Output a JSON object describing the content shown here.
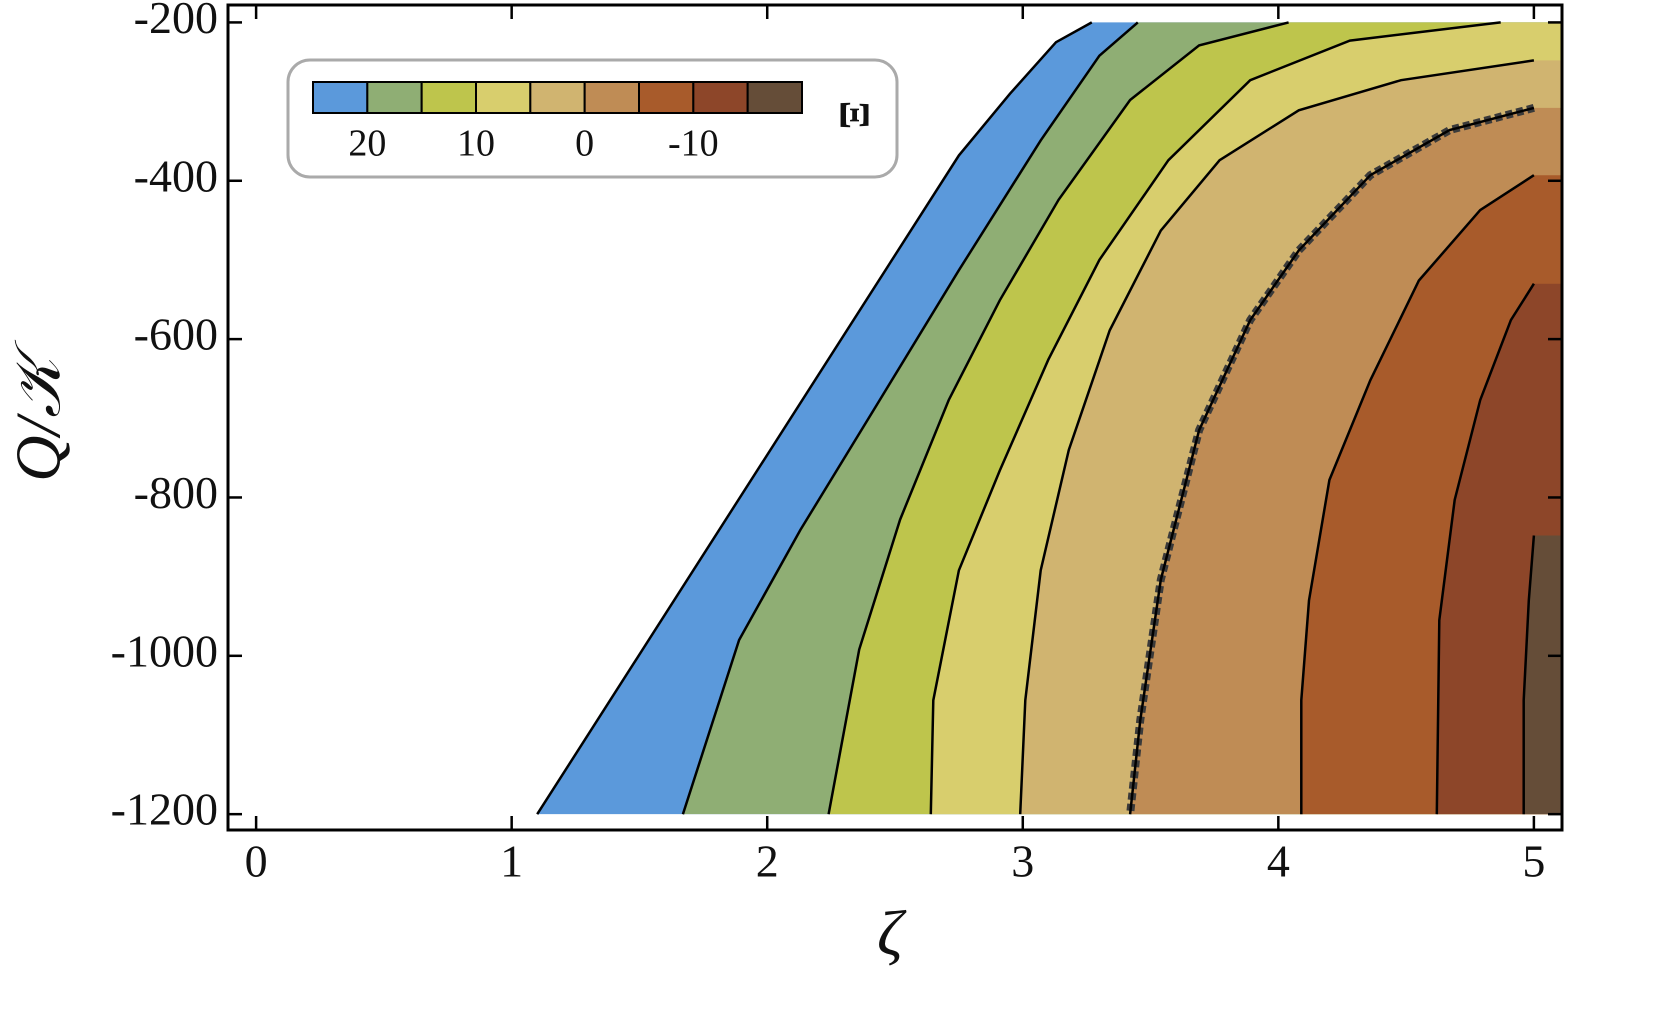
{
  "chart_data": {
    "type": "contour",
    "xlabel": "ζ",
    "ylabel": "Q/𝒦",
    "xlim": [
      -0.11,
      5.11
    ],
    "ylim": [
      -1220,
      -178
    ],
    "xticks": [
      0,
      1,
      2,
      3,
      4,
      5
    ],
    "yticks": [
      -1200,
      -1000,
      -800,
      -600,
      -400,
      -200
    ],
    "colorbar": {
      "label": "Ξ",
      "levels": [
        25,
        20,
        15,
        10,
        5,
        0,
        -5,
        -10,
        -15,
        -20
      ],
      "colors": [
        "#5b99db",
        "#8fae74",
        "#bec54c",
        "#d8ce6d",
        "#d0b470",
        "#bf8c55",
        "#a85b2b",
        "#8d4629",
        "#654d38"
      ],
      "ticks": [
        20,
        10,
        0,
        -10
      ]
    },
    "contours": [
      {
        "level": 25,
        "x": [
          3.27,
          3.13,
          2.95,
          2.75,
          1.1
        ],
        "y": [
          -200,
          -225,
          -290,
          -368,
          -1200
        ]
      },
      {
        "level": 20,
        "x": [
          3.45,
          3.3,
          3.07,
          2.75,
          2.44,
          2.13,
          1.89,
          1.67
        ],
        "y": [
          -200,
          -242,
          -349,
          -513,
          -677,
          -841,
          -980,
          -1200
        ]
      },
      {
        "level": 15,
        "x": [
          4.04,
          3.69,
          3.42,
          3.14,
          2.91,
          2.71,
          2.52,
          2.36,
          2.24
        ],
        "y": [
          -200,
          -229,
          -298,
          -424,
          -551,
          -677,
          -828,
          -992,
          -1200
        ]
      },
      {
        "level": 10,
        "x": [
          4.87,
          4.28,
          3.89,
          3.57,
          3.3,
          3.1,
          2.91,
          2.75,
          2.65,
          2.64
        ],
        "y": [
          -200,
          -223,
          -273,
          -374,
          -500,
          -626,
          -766,
          -892,
          -1056,
          -1200
        ]
      },
      {
        "level": 5,
        "x": [
          5,
          4.48,
          4.08,
          3.77,
          3.54,
          3.34,
          3.18,
          3.07,
          3.01,
          2.99
        ],
        "y": [
          -248,
          -273,
          -311,
          -374,
          -463,
          -589,
          -740,
          -892,
          -1056,
          -1200
        ]
      },
      {
        "level": 0,
        "style": "dashed",
        "x": [
          5,
          4.67,
          4.36,
          4.08,
          3.89,
          3.69,
          3.54,
          3.46,
          3.42
        ],
        "y": [
          -308,
          -336,
          -393,
          -488,
          -576,
          -715,
          -904,
          -1081,
          -1200
        ]
      },
      {
        "level": -5,
        "x": [
          5,
          4.79,
          4.55,
          4.36,
          4.2,
          4.12,
          4.09,
          4.09
        ],
        "y": [
          -393,
          -437,
          -526,
          -652,
          -778,
          -930,
          -1056,
          -1200
        ]
      },
      {
        "level": -10,
        "x": [
          5,
          4.91,
          4.79,
          4.69,
          4.63,
          4.62
        ],
        "y": [
          -530,
          -576,
          -677,
          -803,
          -955,
          -1200
        ]
      },
      {
        "level": -15,
        "x": [
          5,
          4.98,
          4.96,
          4.96
        ],
        "y": [
          -848,
          -930,
          -1056,
          -1200
        ]
      }
    ]
  }
}
